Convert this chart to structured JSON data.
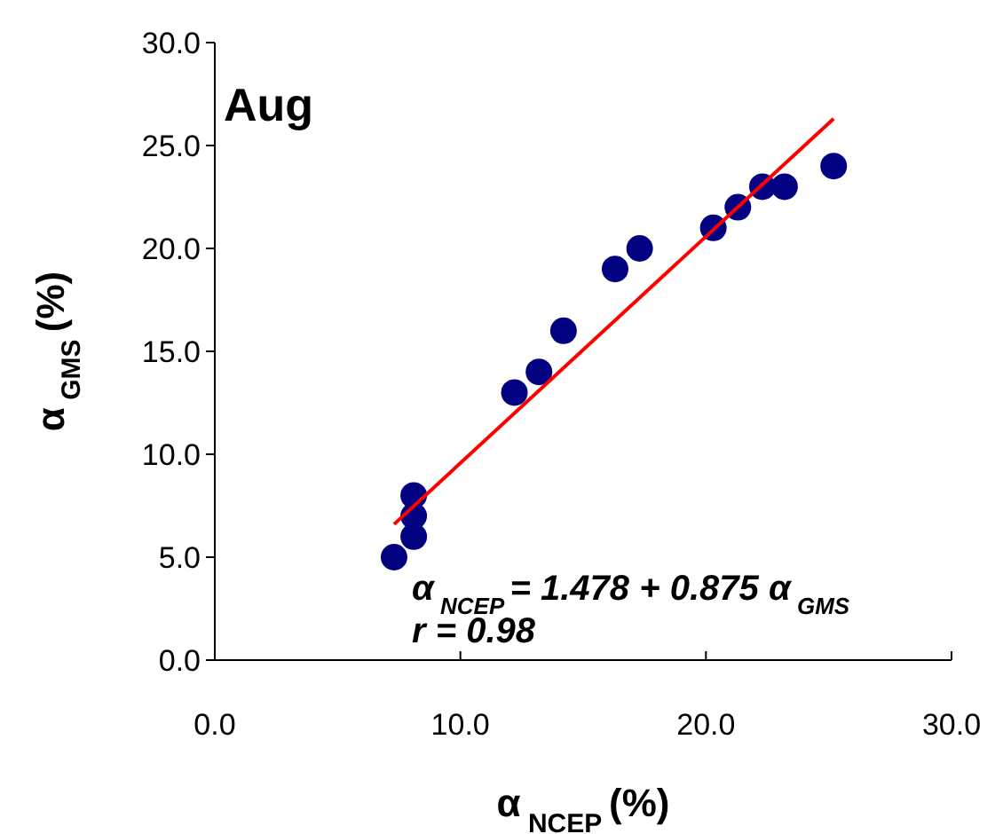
{
  "chart_data": {
    "type": "scatter",
    "title": "Aug",
    "xlabel": "α$_{NCEP}$ (%)",
    "ylabel": "α$_{GMS}$ (%)",
    "xlim": [
      0,
      30
    ],
    "ylim": [
      0,
      30
    ],
    "xticks": [
      {
        "value": 0,
        "label": "0.0"
      },
      {
        "value": 10,
        "label": "10.0"
      },
      {
        "value": 20,
        "label": "20.0"
      },
      {
        "value": 30,
        "label": "30.0"
      }
    ],
    "yticks": [
      {
        "value": 0,
        "label": "0.0"
      },
      {
        "value": 5,
        "label": "5.0"
      },
      {
        "value": 10,
        "label": "10.0"
      },
      {
        "value": 15,
        "label": "15.0"
      },
      {
        "value": 20,
        "label": "20.0"
      },
      {
        "value": 25,
        "label": "25.0"
      },
      {
        "value": 30,
        "label": "30.0"
      }
    ],
    "grid": false,
    "marker": "circle",
    "series": [
      {
        "color": "#000080",
        "x": [
          7.3,
          8.1,
          8.1,
          8.1,
          12.2,
          13.2,
          14.2,
          16.3,
          17.3,
          20.3,
          21.3,
          22.3,
          23.2,
          25.2
        ],
        "values": [
          5.0,
          8.0,
          7.0,
          6.0,
          13.0,
          14.0,
          16.0,
          19.0,
          20.0,
          21.0,
          22.0,
          23.0,
          23.0,
          24.0
        ]
      },
      {
        "type": "line",
        "color": "#ff0000",
        "marker": "none",
        "line_style": "solid",
        "x": [
          7.3,
          25.2
        ],
        "values": [
          6.6,
          26.3
        ]
      }
    ],
    "annotations": [
      "α$_{NCEP}$ = 1.478 + 0.875 α$_{GMS}$",
      "r = 0.98"
    ]
  }
}
